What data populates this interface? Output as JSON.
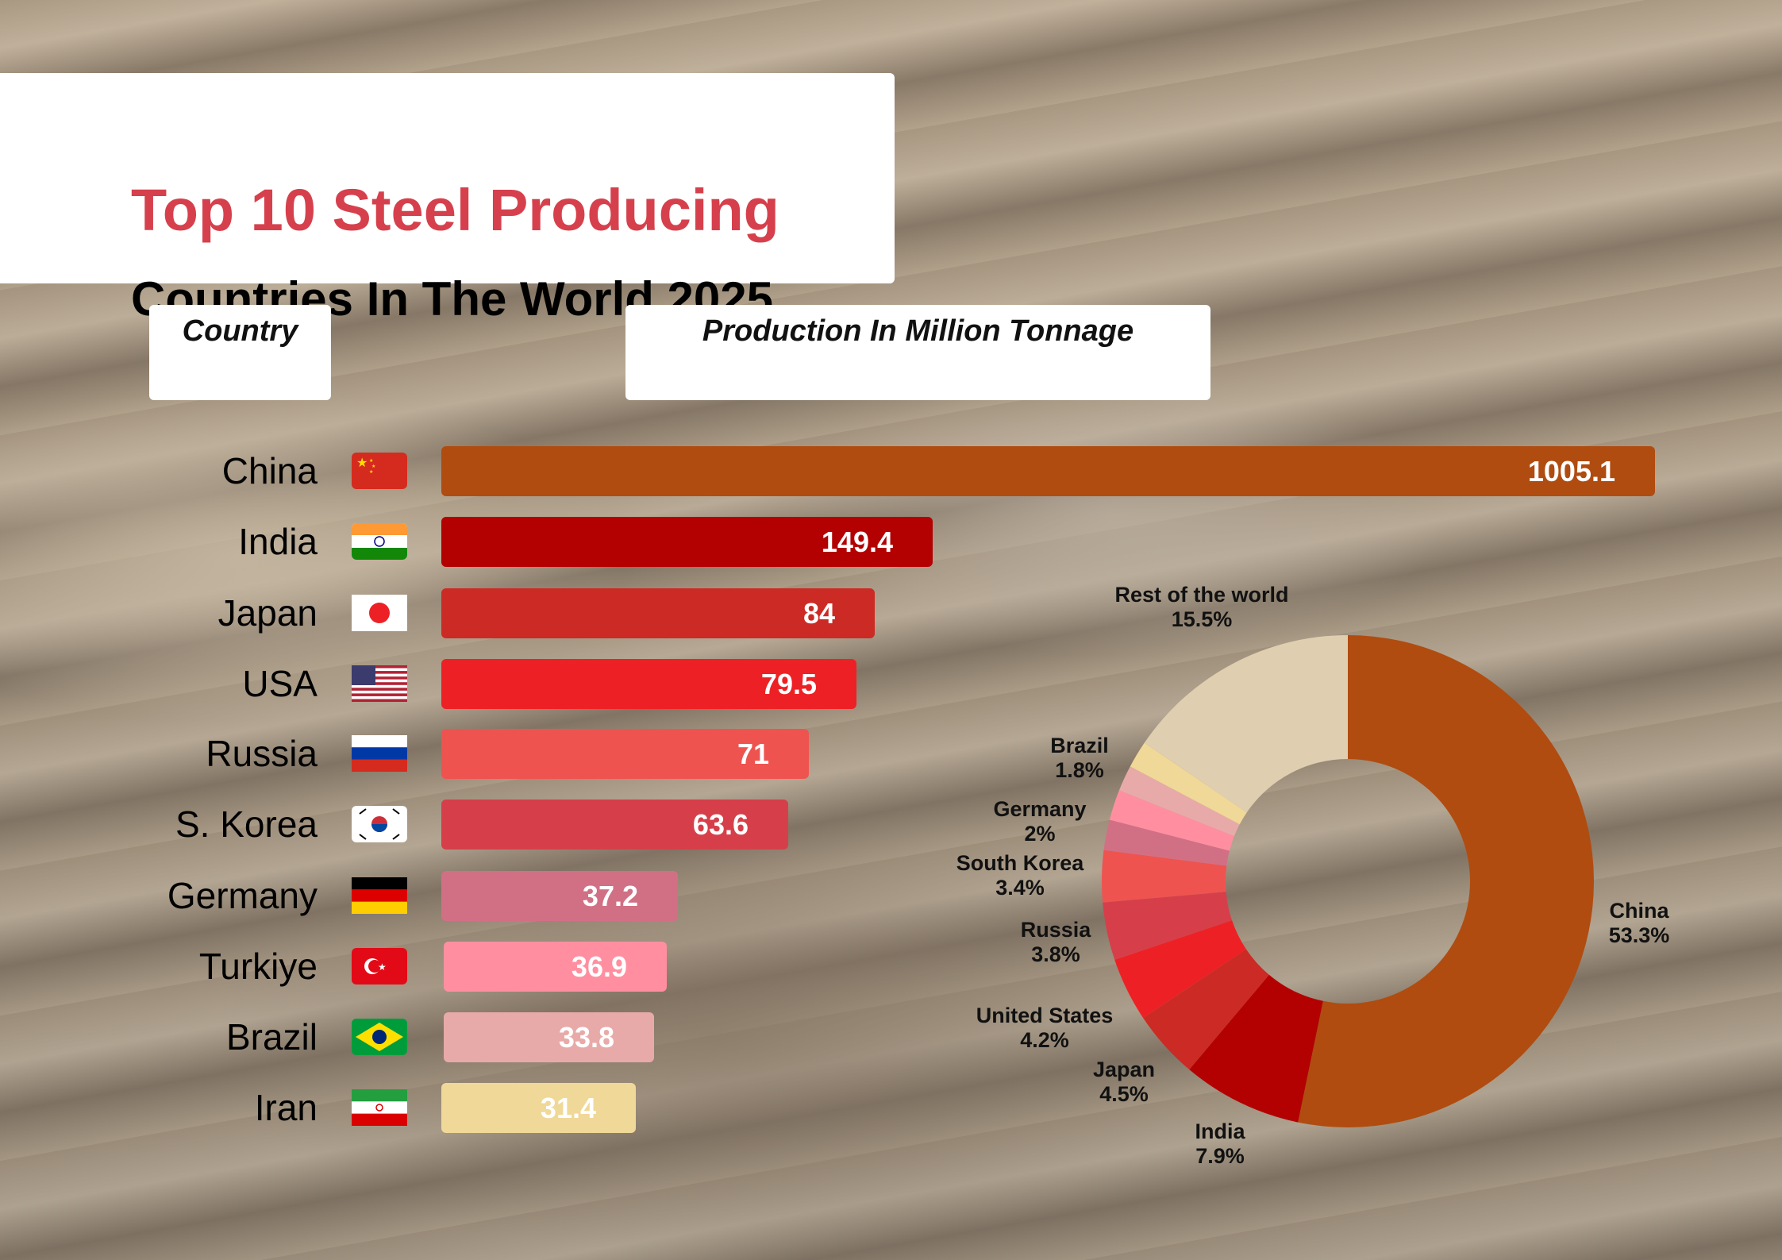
{
  "title": {
    "line1": "Top 10 Steel Producing",
    "line2": "Countries In The World 2025"
  },
  "headers": {
    "country": "Country",
    "production": "Production In Million Tonnage"
  },
  "colors": {
    "title_red": "#d6404c"
  },
  "chart_data": [
    {
      "type": "bar",
      "orientation": "horizontal",
      "categories": [
        "China",
        "India",
        "Japan",
        "USA",
        "Russia",
        "S. Korea",
        "Germany",
        "Turkiye",
        "Brazil",
        "Iran"
      ],
      "values": [
        1005.1,
        149.4,
        84,
        79.5,
        71,
        63.6,
        37.2,
        36.9,
        33.8,
        31.4
      ],
      "value_labels": [
        "1005.1",
        "149.4",
        "84",
        "79.5",
        "71",
        "63.6",
        "37.2",
        "36.9",
        "33.8",
        "31.4"
      ],
      "flags": [
        "china-flag-icon",
        "india-flag-icon",
        "japan-flag-icon",
        "usa-flag-icon",
        "russia-flag-icon",
        "south-korea-flag-icon",
        "germany-flag-icon",
        "turkiye-flag-icon",
        "brazil-flag-icon",
        "iran-flag-icon"
      ],
      "colors": [
        "#b04c10",
        "#b30000",
        "#cc2a24",
        "#ed2125",
        "#ef5350",
        "#d63f4a",
        "#d17085",
        "#ff8fa0",
        "#e8aaa8",
        "#f0d898"
      ]
    },
    {
      "type": "pie",
      "donut": true,
      "slices": [
        {
          "label": "China",
          "value": 53.3,
          "text": "53.3%",
          "color": "#b04c10"
        },
        {
          "label": "India",
          "value": 7.9,
          "text": "7.9%",
          "color": "#b30000"
        },
        {
          "label": "Japan",
          "value": 4.5,
          "text": "4.5%",
          "color": "#cc2a24"
        },
        {
          "label": "United States",
          "value": 4.2,
          "text": "4.2%",
          "color": "#ed2125"
        },
        {
          "label": "Russia",
          "value": 3.8,
          "text": "3.8%",
          "color": "#d63f4a"
        },
        {
          "label": "South Korea",
          "value": 3.4,
          "text": "3.4%",
          "color": "#ef5350"
        },
        {
          "label": "",
          "value": 2.0,
          "text": "",
          "color": "#d17085"
        },
        {
          "label": "Germany",
          "value": 2,
          "text": "2%",
          "color": "#ff8fa0"
        },
        {
          "label": "",
          "value": 1.7,
          "text": "",
          "color": "#e8aaa8"
        },
        {
          "label": "Brazil",
          "value": 1.8,
          "text": "1.8%",
          "color": "#f0d898"
        },
        {
          "label": "Rest of the world",
          "value": 15.5,
          "text": "15.5%",
          "color": "#dfcfb0"
        }
      ]
    }
  ]
}
